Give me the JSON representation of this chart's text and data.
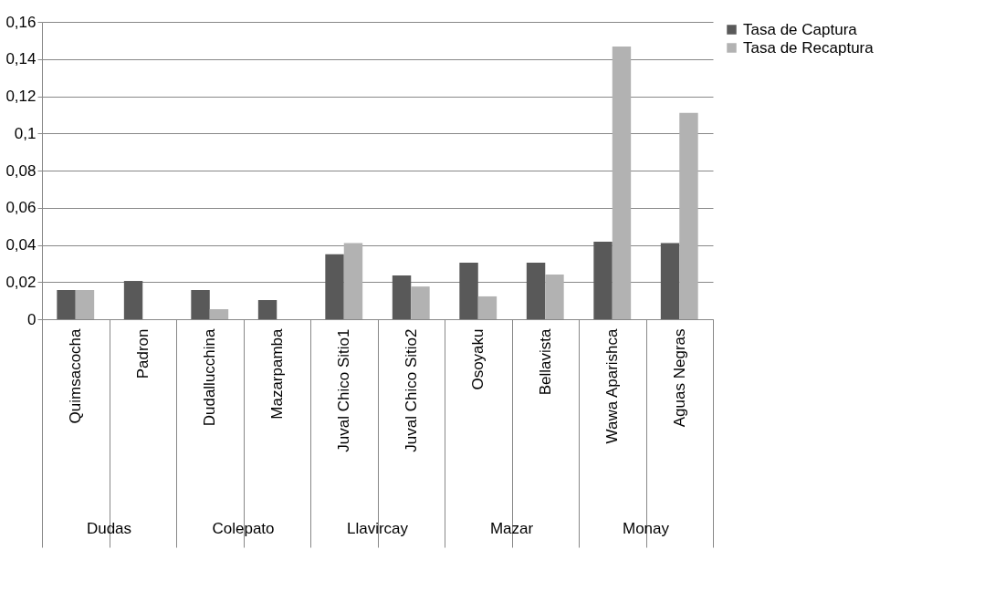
{
  "chart_data": {
    "type": "bar",
    "categories": [
      "Quimsacocha",
      "Padron",
      "Dudallucchina",
      "Mazarpamba",
      "Juval Chico Sitio1",
      "Juval Chico Sitio2",
      "Osoyaku",
      "Bellavista",
      "Wawa Aparishca",
      "Aguas Negras"
    ],
    "series": [
      {
        "name": "Tasa de Captura",
        "color": "#595959",
        "values": [
          0.0157,
          0.0206,
          0.0157,
          0.0103,
          0.035,
          0.0235,
          0.0304,
          0.0304,
          0.0417,
          0.041
        ]
      },
      {
        "name": "Tasa de Recaptura",
        "color": "#b2b2b2",
        "values": [
          0.0157,
          0,
          0.0054,
          0,
          0.041,
          0.0176,
          0.0123,
          0.024,
          0.1467,
          0.111
        ]
      }
    ],
    "annotations": [
      "Dudas",
      "Colepato",
      "Llavircay",
      "Mazar",
      "Monay"
    ],
    "ylim": [
      0,
      0.16
    ],
    "yticks": [
      {
        "value": 0,
        "label": "0"
      },
      {
        "value": 0.02,
        "label": "0,02"
      },
      {
        "value": 0.04,
        "label": "0,04"
      },
      {
        "value": 0.06,
        "label": "0,06"
      },
      {
        "value": 0.08,
        "label": "0,08"
      },
      {
        "value": 0.1,
        "label": "0,1"
      },
      {
        "value": 0.12,
        "label": "0,12"
      },
      {
        "value": 0.14,
        "label": "0,14"
      },
      {
        "value": 0.16,
        "label": "0,16"
      }
    ],
    "grid": "y",
    "legend": "right"
  }
}
